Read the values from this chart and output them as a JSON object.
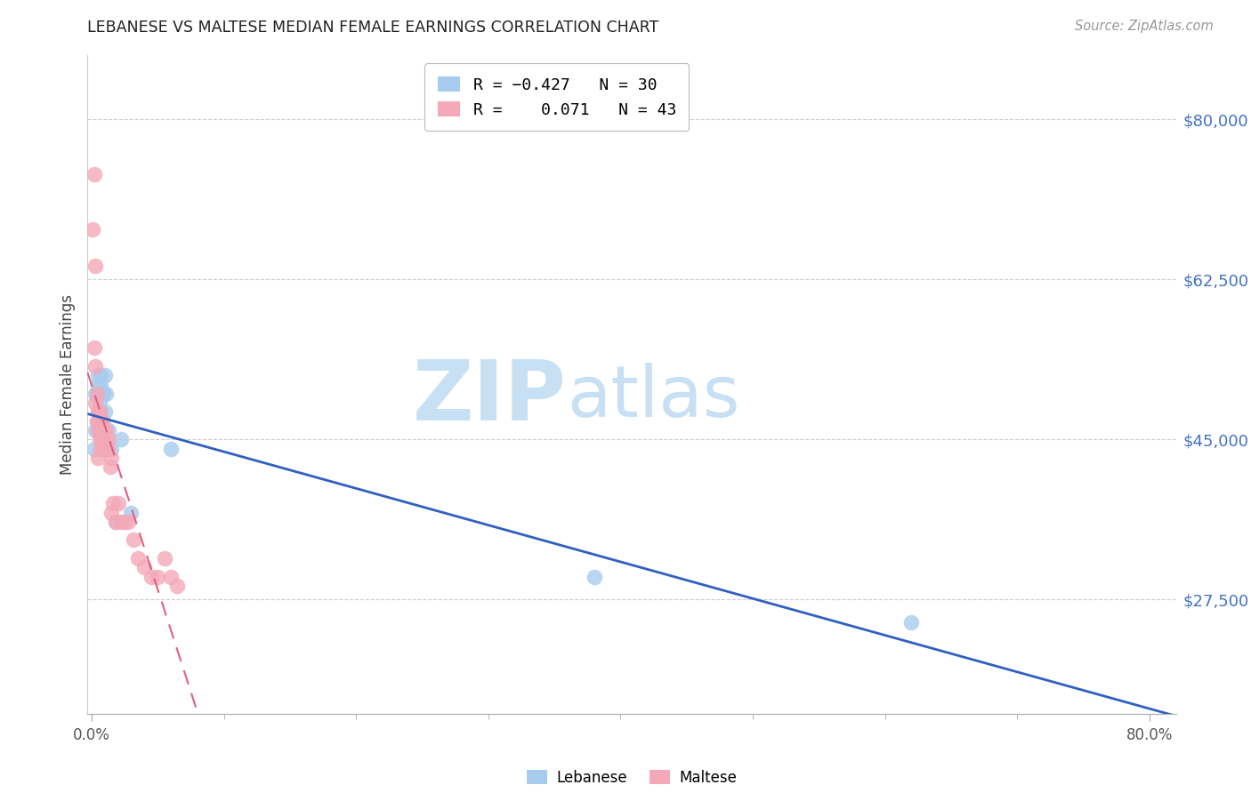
{
  "title": "LEBANESE VS MALTESE MEDIAN FEMALE EARNINGS CORRELATION CHART",
  "source": "Source: ZipAtlas.com",
  "ylabel": "Median Female Earnings",
  "ytick_labels": [
    "$27,500",
    "$45,000",
    "$62,500",
    "$80,000"
  ],
  "ytick_values": [
    27500,
    45000,
    62500,
    80000
  ],
  "ymin": 15000,
  "ymax": 87000,
  "xmin": -0.003,
  "xmax": 0.82,
  "lebanese_color": "#A8CCEE",
  "maltese_color": "#F4A8B8",
  "lebanese_line_color": "#3060C0",
  "maltese_line_color": "#E06080",
  "maltese_line_dash": [
    8,
    5
  ],
  "watermark_zip": "ZIP",
  "watermark_atlas": "atlas",
  "watermark_color": "#C8E0F4",
  "title_color": "#222222",
  "source_color": "#999999",
  "ytick_color": "#4472C4",
  "xtick_color": "#555555",
  "grid_color": "#CCCCCC",
  "legend_box_color": "#DDDDDD",
  "lebanese_x": [
    0.002,
    0.003,
    0.003,
    0.004,
    0.004,
    0.005,
    0.005,
    0.005,
    0.006,
    0.006,
    0.006,
    0.007,
    0.007,
    0.007,
    0.008,
    0.008,
    0.009,
    0.009,
    0.01,
    0.01,
    0.011,
    0.012,
    0.013,
    0.015,
    0.018,
    0.022,
    0.03,
    0.06,
    0.38,
    0.62
  ],
  "lebanese_y": [
    44000,
    46000,
    50000,
    47000,
    50000,
    48000,
    51000,
    52000,
    49000,
    50000,
    46000,
    51000,
    48000,
    52000,
    50000,
    47000,
    50000,
    46000,
    52000,
    48000,
    50000,
    44000,
    46000,
    44000,
    36000,
    45000,
    37000,
    44000,
    30000,
    25000
  ],
  "maltese_x": [
    0.001,
    0.002,
    0.002,
    0.003,
    0.003,
    0.003,
    0.004,
    0.004,
    0.005,
    0.005,
    0.005,
    0.006,
    0.006,
    0.006,
    0.007,
    0.007,
    0.007,
    0.008,
    0.008,
    0.009,
    0.009,
    0.01,
    0.01,
    0.011,
    0.012,
    0.013,
    0.014,
    0.015,
    0.015,
    0.016,
    0.018,
    0.02,
    0.022,
    0.025,
    0.028,
    0.032,
    0.035,
    0.04,
    0.045,
    0.05,
    0.055,
    0.06,
    0.065
  ],
  "maltese_y": [
    68000,
    74000,
    55000,
    64000,
    49000,
    53000,
    47000,
    50000,
    46000,
    48000,
    43000,
    47000,
    45000,
    48000,
    46000,
    44000,
    47000,
    45000,
    47000,
    44000,
    46000,
    44000,
    45000,
    46000,
    44000,
    45000,
    42000,
    43000,
    37000,
    38000,
    36000,
    38000,
    36000,
    36000,
    36000,
    34000,
    32000,
    31000,
    30000,
    30000,
    32000,
    30000,
    29000
  ]
}
